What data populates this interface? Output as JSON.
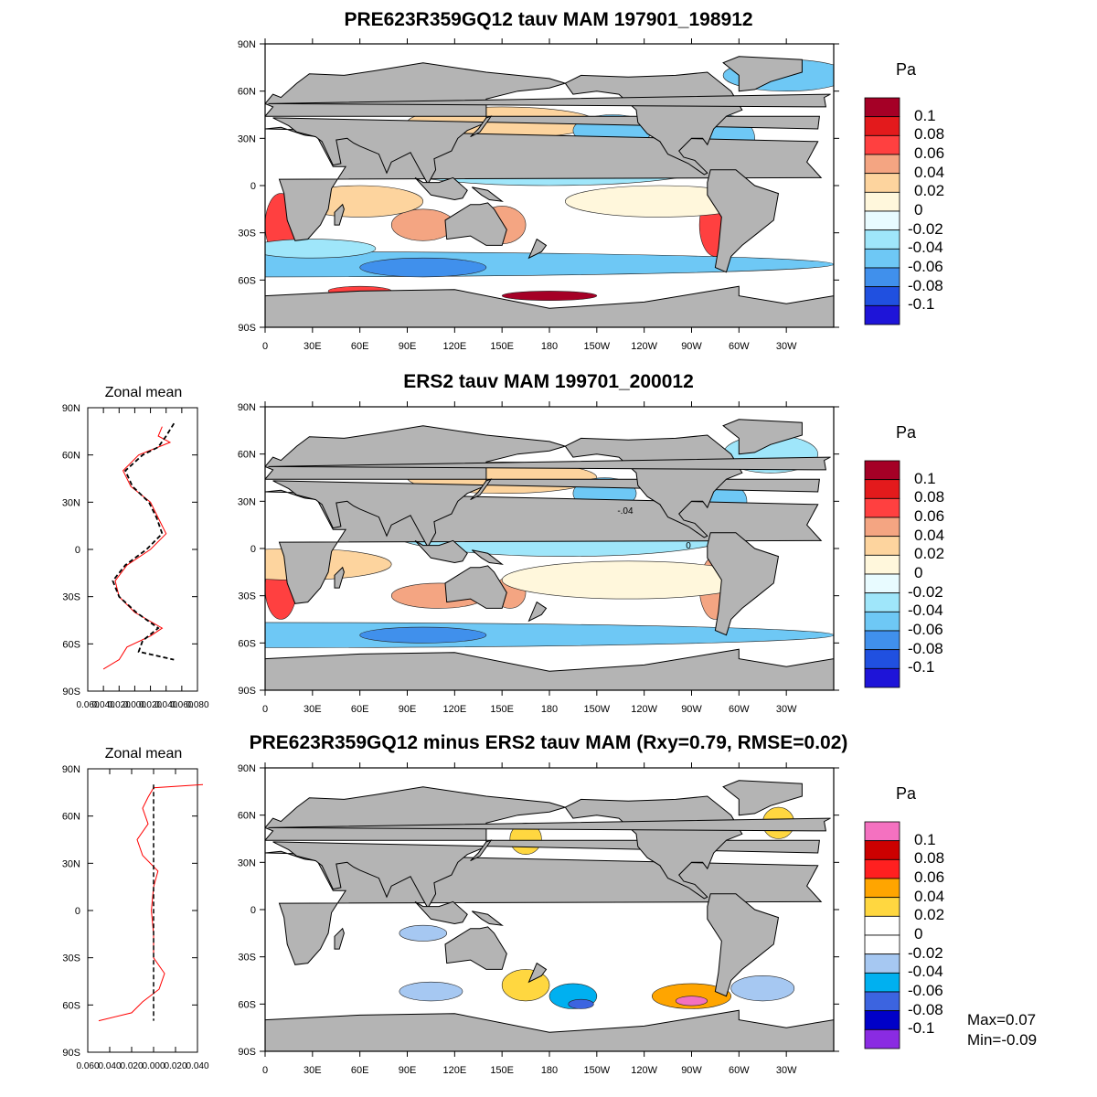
{
  "panels": [
    {
      "title": "PRE623R359GQ12 tauv MAM 197901_198912",
      "units": "Pa",
      "colorbar_labels": [
        "0.1",
        "0.08",
        "0.06",
        "0.04",
        "0.02",
        "0",
        "-0.02",
        "-0.04",
        "-0.06",
        "-0.08",
        "-0.1"
      ],
      "colorbar_colors": [
        "#a50026",
        "#e31a1c",
        "#ff4040",
        "#f4a582",
        "#fdd49e",
        "#fff7dc",
        "#e8fbff",
        "#9fe6fa",
        "#6ec8f5",
        "#4090ec",
        "#2050e0",
        "#1e14d8"
      ],
      "has_zonal": false
    },
    {
      "title": "ERS2 tauv MAM 199701_200012",
      "units": "Pa",
      "colorbar_labels": [
        "0.1",
        "0.08",
        "0.06",
        "0.04",
        "0.02",
        "0",
        "-0.02",
        "-0.04",
        "-0.06",
        "-0.08",
        "-0.1"
      ],
      "colorbar_colors": [
        "#a50026",
        "#e31a1c",
        "#ff4040",
        "#f4a582",
        "#fdd49e",
        "#fff7dc",
        "#e8fbff",
        "#9fe6fa",
        "#6ec8f5",
        "#4090ec",
        "#2050e0",
        "#1e14d8"
      ],
      "has_zonal": true,
      "zonal_title": "Zonal mean",
      "zonal_xticks": [
        "0.060",
        "0.040",
        "0.020",
        "0.000",
        "0.020",
        "0.040",
        "0.060",
        "0.080"
      ],
      "contour_labels": [
        "-.04",
        "0"
      ]
    },
    {
      "title": "PRE623R359GQ12 minus ERS2 tauv MAM (Rxy=0.79, RMSE=0.02)",
      "units": "Pa",
      "colorbar_labels": [
        "0.1",
        "0.08",
        "0.06",
        "0.04",
        "0.02",
        "0",
        "-0.02",
        "-0.04",
        "-0.06",
        "-0.08",
        "-0.1"
      ],
      "colorbar_colors": [
        "#f471c0",
        "#cc0000",
        "#ff2020",
        "#ffa500",
        "#ffd740",
        "#ffffff",
        "#ffffff",
        "#a6c8f2",
        "#00b0f0",
        "#3c64e0",
        "#0000c8",
        "#8a2be2"
      ],
      "has_zonal": true,
      "zonal_title": "Zonal mean",
      "zonal_xticks": [
        "0.060",
        "0.040",
        "0.020",
        "0.000",
        "0.020",
        "0.040"
      ],
      "stats_max": "Max=0.07",
      "stats_min": "Min=-0.09"
    }
  ],
  "map_axes": {
    "lat_ticks": [
      "90N",
      "60N",
      "30N",
      "0",
      "30S",
      "60S",
      "90S"
    ],
    "lon_ticks": [
      "0",
      "30E",
      "60E",
      "90E",
      "120E",
      "150E",
      "180",
      "150W",
      "120W",
      "90W",
      "60W",
      "30W"
    ]
  },
  "zonal_axes": {
    "lat_ticks": [
      "90N",
      "60N",
      "30N",
      "0",
      "30S",
      "60S",
      "90S"
    ]
  },
  "colors": {
    "land": "#b4b4b4",
    "model_line": "#ff0000",
    "obs_line": "#000000"
  }
}
